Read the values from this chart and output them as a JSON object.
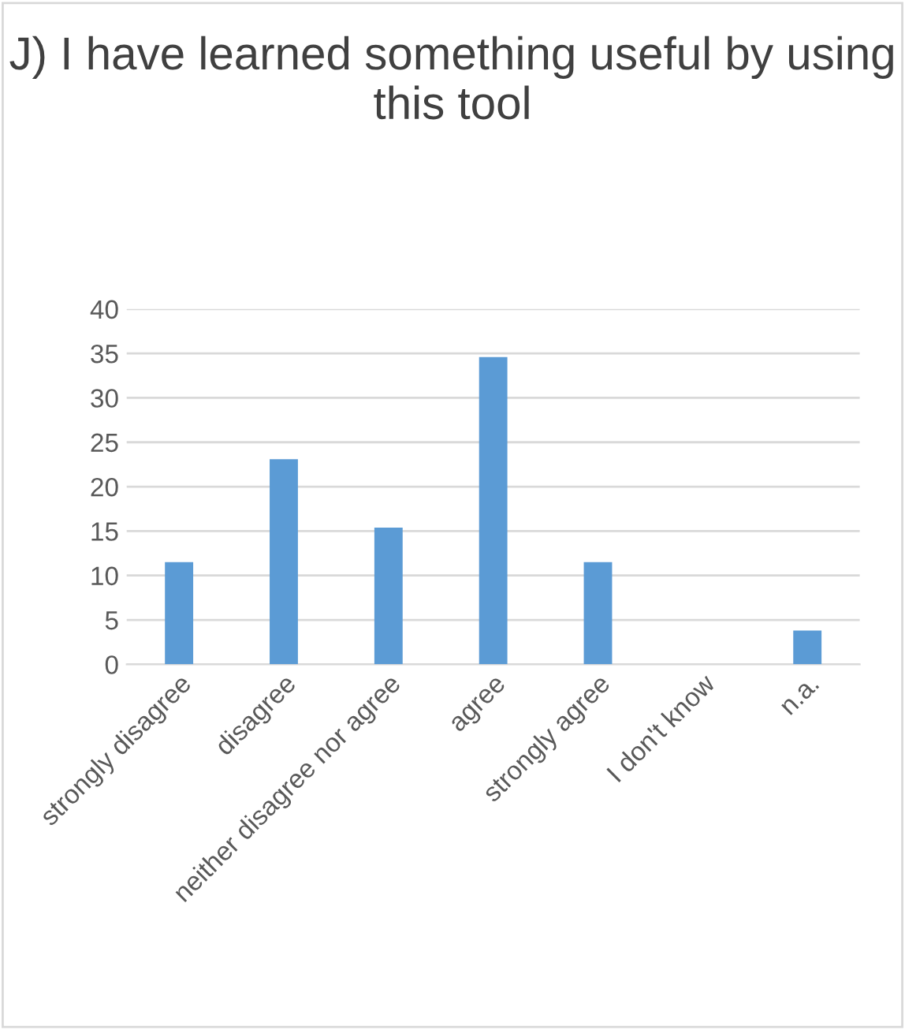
{
  "chart_data": {
    "type": "bar",
    "title": "J) I have learned something useful by using this tool",
    "categories": [
      "strongly disagree",
      "disagree",
      "neither disagree nor agree",
      "agree",
      "strongly agree",
      "I don't know",
      "n.a."
    ],
    "values": [
      11.5,
      23.1,
      15.4,
      34.6,
      11.5,
      0,
      3.8
    ],
    "color": "#5b9bd5",
    "ylim": [
      0,
      40
    ],
    "yticks": [
      0,
      5,
      10,
      15,
      20,
      25,
      30,
      35,
      40
    ],
    "grid": "y",
    "legend": false
  }
}
